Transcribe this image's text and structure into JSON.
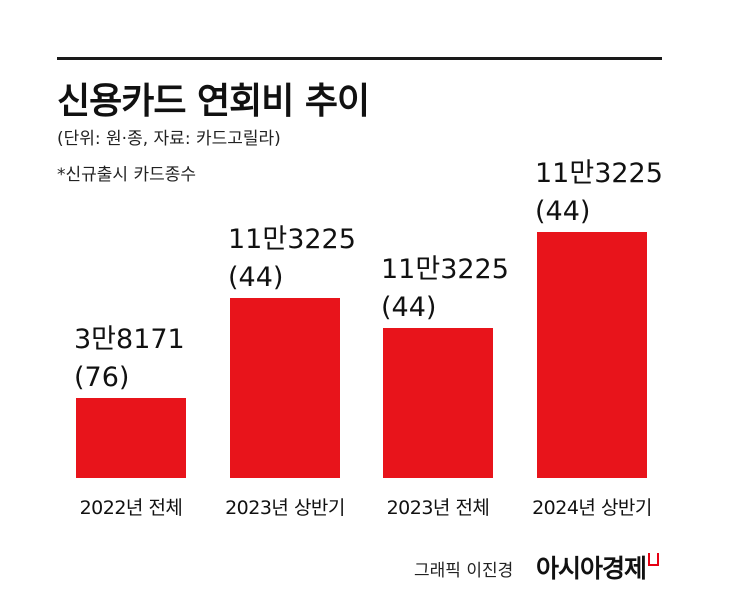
{
  "title": "신용카드 연회비 추이",
  "units_note": "(단위: 원·종, 자료: 카드고릴라)",
  "footnote": "*신규출시 카드종수",
  "credit": "그래픽 이진경",
  "logo": "아시아경제",
  "chart_data": {
    "type": "bar",
    "title": "신용카드 연회비 추이",
    "categories": [
      "2022년 전체",
      "2023년 상반기",
      "2023년 전체",
      "2024년 상반기"
    ],
    "values": [
      38171,
      113225,
      113225,
      113225
    ],
    "counts": [
      76,
      44,
      44,
      44
    ],
    "value_labels": [
      "3만8171",
      "11만3225",
      "11만3225",
      "11만3225"
    ],
    "count_labels": [
      "(76)",
      "(44)",
      "(44)",
      "(44)"
    ],
    "bar_color": "#e8141b",
    "grid": false,
    "legend": "none"
  }
}
